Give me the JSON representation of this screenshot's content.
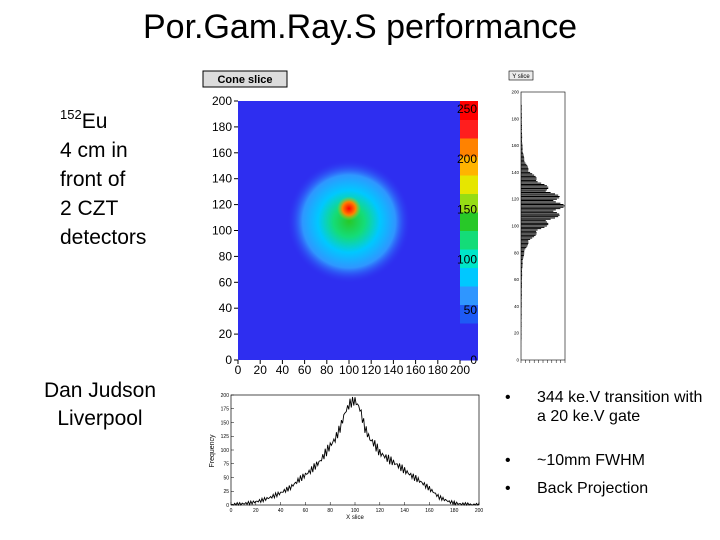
{
  "slide": {
    "title": "Por.Gam.Ray.S performance",
    "isotope_sup": "152",
    "isotope_symbol": "Eu",
    "description_lines": [
      "4 cm in",
      "front of",
      "2 CZT",
      "detectors"
    ],
    "author_name": "Dan Judson",
    "author_affiliation": "Liverpool",
    "bullets": [
      {
        "marker": "•",
        "text": "344 ke.V transition with a 20 ke.V gate"
      },
      {
        "marker": "•",
        "text": "~10mm FWHM"
      },
      {
        "marker": "•",
        "text": "Back Projection"
      }
    ]
  },
  "colors": {
    "background": "#ffffff",
    "heatmap_bg": "#2e2ef0",
    "hotspot": "#ff0000"
  },
  "chart_data": [
    {
      "type": "heatmap",
      "title": "Cone slice",
      "x_ticks": [
        "0",
        "20",
        "40",
        "60",
        "80",
        "100",
        "120",
        "140",
        "160",
        "180",
        "200"
      ],
      "y_ticks": [
        "0",
        "20",
        "40",
        "60",
        "80",
        "100",
        "120",
        "140",
        "160",
        "180",
        "200"
      ],
      "xlim": [
        0,
        200
      ],
      "ylim": [
        0,
        200
      ],
      "peak": {
        "x": 100,
        "y": 117
      },
      "palette_labels": [
        "0",
        "50",
        "100",
        "150",
        "200",
        "250"
      ],
      "palette_colors": [
        "#2e2ef0",
        "#2e2ef0",
        "#1e5af5",
        "#2f96ff",
        "#00c8ff",
        "#00e6c8",
        "#14dc78",
        "#28c828",
        "#96dc14",
        "#e6e600",
        "#ffb400",
        "#ff8200",
        "#ff1e1e",
        "#ff0000"
      ]
    },
    {
      "type": "bar",
      "title": "Y slice",
      "orientation": "horizontal",
      "xlim": [
        0,
        200
      ],
      "ylim": [
        0,
        200
      ],
      "y_ticks": [
        "0",
        "20",
        "40",
        "60",
        "80",
        "100",
        "120",
        "140",
        "160",
        "180",
        "200"
      ],
      "x_ticks": [
        "0",
        "20",
        "40",
        "60",
        "80",
        "100",
        "120",
        "140",
        "160",
        "180",
        "200"
      ],
      "peak_y": 115,
      "peak_value": 130,
      "fwhm_width": 34
    },
    {
      "type": "line",
      "title": "",
      "xlabel": "X slice",
      "ylabel": "Frequency",
      "xlim": [
        0,
        200
      ],
      "ylim": [
        0,
        200
      ],
      "x_ticks": [
        "0",
        "20",
        "40",
        "60",
        "80",
        "100",
        "120",
        "140",
        "160",
        "180",
        "200"
      ],
      "y_ticks": [
        "0",
        "25",
        "50",
        "75",
        "100",
        "125",
        "150",
        "175",
        "200"
      ],
      "x": [
        0,
        8,
        16,
        24,
        32,
        40,
        48,
        56,
        64,
        72,
        80,
        84,
        88,
        92,
        96,
        100,
        104,
        108,
        112,
        116,
        120,
        128,
        136,
        144,
        152,
        160,
        168,
        176,
        184,
        192,
        200
      ],
      "y": [
        0,
        2,
        4,
        8,
        14,
        22,
        32,
        48,
        62,
        80,
        108,
        120,
        140,
        168,
        185,
        190,
        175,
        140,
        120,
        110,
        95,
        82,
        70,
        56,
        44,
        30,
        14,
        6,
        2,
        1,
        0
      ]
    }
  ]
}
